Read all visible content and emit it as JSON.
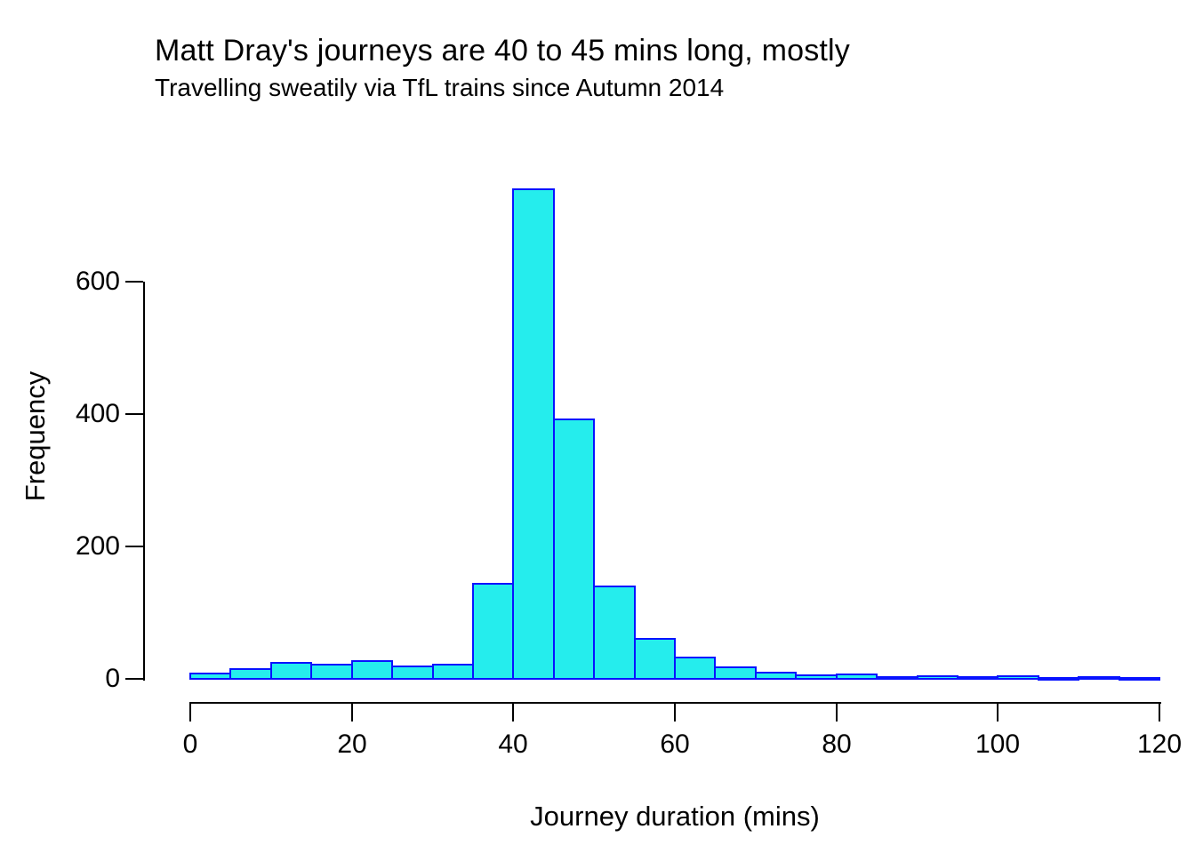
{
  "chart_data": {
    "type": "bar",
    "subtype": "histogram",
    "title": "Matt Dray's journeys are 40 to 45 mins long, mostly",
    "subtitle": "Travelling sweatily via TfL trains since Autumn 2014",
    "xlabel": "Journey duration (mins)",
    "ylabel": "Frequency",
    "bin_start": 0,
    "bin_width": 5,
    "bin_edges": [
      0,
      5,
      10,
      15,
      20,
      25,
      30,
      35,
      40,
      45,
      50,
      55,
      60,
      65,
      70,
      75,
      80,
      85,
      90,
      95,
      100,
      105,
      110,
      115,
      120
    ],
    "values": [
      8,
      15,
      24,
      21,
      27,
      19,
      22,
      143,
      739,
      392,
      140,
      61,
      32,
      17,
      10,
      5,
      7,
      3,
      4,
      3,
      4,
      1,
      3,
      1
    ],
    "x_ticks": [
      0,
      20,
      40,
      60,
      80,
      100,
      120
    ],
    "y_ticks": [
      0,
      200,
      400,
      600
    ],
    "xlim": [
      0,
      120
    ],
    "ylim": [
      0,
      750
    ],
    "grid": false,
    "legend": "none",
    "colors": {
      "bar_fill": "#25EDED",
      "bar_border": "#0813FF",
      "axis": "#000000",
      "text": "#000000",
      "background": "#FFFFFF"
    }
  }
}
